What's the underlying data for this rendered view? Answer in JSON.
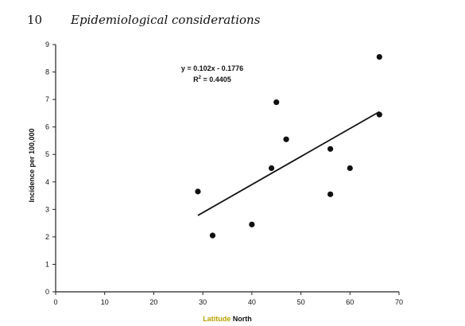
{
  "page": {
    "number": "10",
    "running_head": "Epidemiological considerations"
  },
  "chart_data": {
    "type": "scatter",
    "xlabel": "Latitude North",
    "xlabel_parts": {
      "highlight": "Latitude",
      "rest": "North",
      "highlight_color": "#b8a200"
    },
    "ylabel": "Incidence per 100,000",
    "xlim": [
      0,
      70
    ],
    "ylim": [
      0,
      9
    ],
    "xticks": [
      0,
      10,
      20,
      30,
      40,
      50,
      60,
      70
    ],
    "yticks": [
      0,
      1,
      2,
      3,
      4,
      5,
      6,
      7,
      8,
      9
    ],
    "grid": false,
    "legend": "none",
    "points": [
      {
        "x": 29,
        "y": 3.65
      },
      {
        "x": 32,
        "y": 2.05
      },
      {
        "x": 40,
        "y": 2.45
      },
      {
        "x": 44,
        "y": 4.5
      },
      {
        "x": 45,
        "y": 6.9
      },
      {
        "x": 47,
        "y": 5.55
      },
      {
        "x": 56,
        "y": 5.2
      },
      {
        "x": 56,
        "y": 3.55
      },
      {
        "x": 60,
        "y": 4.5
      },
      {
        "x": 66,
        "y": 8.55
      },
      {
        "x": 66,
        "y": 6.45
      }
    ],
    "trendline": {
      "type": "linear",
      "slope": 0.102,
      "intercept": -0.1776,
      "x_range": [
        29,
        66
      ],
      "equation_label": "y = 0.102x - 0.1776",
      "r2_label_prefix": "R",
      "r2_label_sup": "2",
      "r2_label_suffix": " = 0.4405"
    }
  }
}
